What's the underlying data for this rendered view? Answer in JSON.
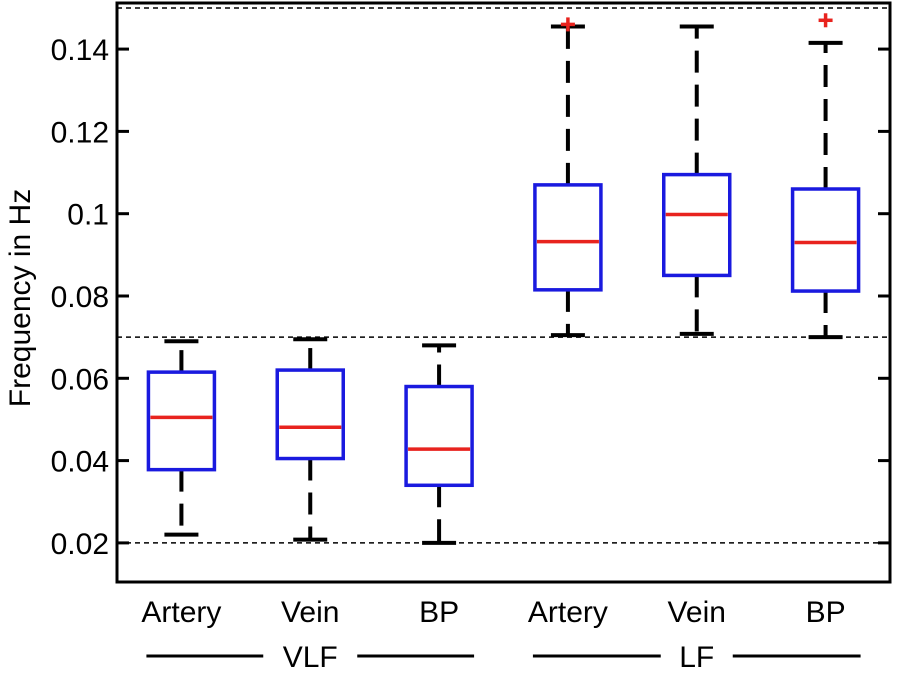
{
  "chart_data": {
    "type": "box",
    "ylabel": "Frequency in Hz",
    "ylim": [
      0.0105,
      0.1512
    ],
    "yticks": [
      0.02,
      0.04,
      0.06,
      0.08,
      0.1,
      0.12,
      0.14
    ],
    "ytick_labels": [
      "0.02",
      "0.04",
      "0.06",
      "0.08",
      "0.1",
      "0.12",
      "0.14"
    ],
    "reference_lines": [
      0.02,
      0.07,
      0.15
    ],
    "groups": [
      {
        "label": "VLF",
        "categories": [
          "Artery",
          "Vein",
          "BP"
        ]
      },
      {
        "label": "LF",
        "categories": [
          "Artery",
          "Vein",
          "BP"
        ]
      }
    ],
    "boxes": [
      {
        "group": "VLF",
        "category": "Artery",
        "whisker_low": 0.022,
        "q1": 0.0378,
        "median": 0.0505,
        "q3": 0.0615,
        "whisker_high": 0.069,
        "outliers": []
      },
      {
        "group": "VLF",
        "category": "Vein",
        "whisker_low": 0.0208,
        "q1": 0.0405,
        "median": 0.0481,
        "q3": 0.062,
        "whisker_high": 0.0695,
        "outliers": []
      },
      {
        "group": "VLF",
        "category": "BP",
        "whisker_low": 0.02,
        "q1": 0.034,
        "median": 0.0428,
        "q3": 0.058,
        "whisker_high": 0.068,
        "outliers": []
      },
      {
        "group": "LF",
        "category": "Artery",
        "whisker_low": 0.0705,
        "q1": 0.0815,
        "median": 0.0932,
        "q3": 0.107,
        "whisker_high": 0.1455,
        "outliers": [
          0.146
        ]
      },
      {
        "group": "LF",
        "category": "Vein",
        "whisker_low": 0.0708,
        "q1": 0.085,
        "median": 0.0998,
        "q3": 0.1095,
        "whisker_high": 0.1455,
        "outliers": []
      },
      {
        "group": "LF",
        "category": "BP",
        "whisker_low": 0.07,
        "q1": 0.0812,
        "median": 0.093,
        "q3": 0.106,
        "whisker_high": 0.1415,
        "outliers": [
          0.147
        ]
      }
    ],
    "colors": {
      "box": "#1a1adf",
      "median": "#e8231e",
      "outlier": "#e8231e",
      "whisker": "#000000",
      "reference_line": "#000000"
    },
    "grid": false,
    "legend": "none"
  }
}
